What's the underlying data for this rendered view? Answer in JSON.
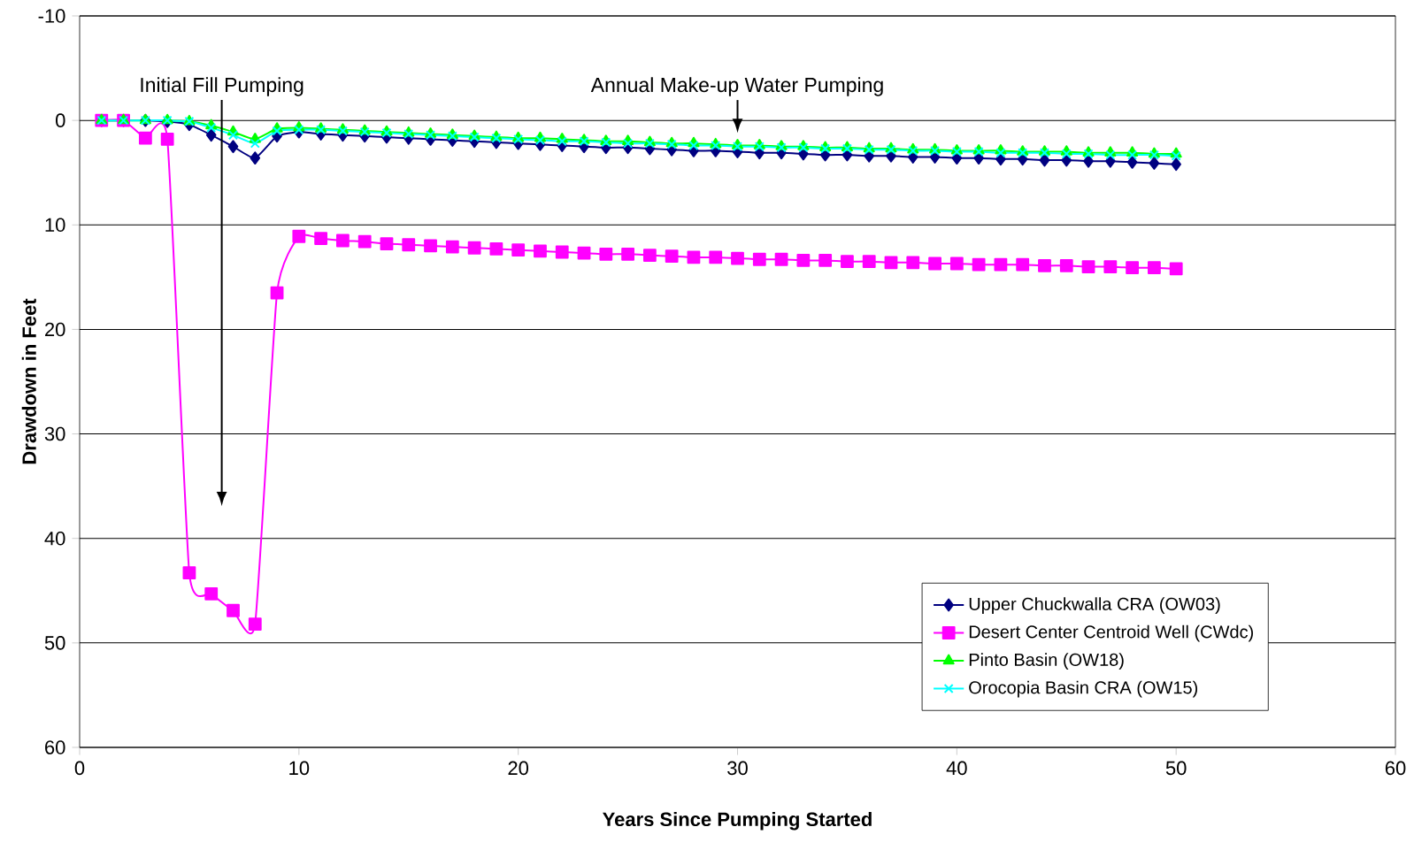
{
  "chart_data": {
    "type": "line",
    "xlabel": "Years Since Pumping Started",
    "ylabel": "Drawdown in Feet",
    "x": [
      1,
      2,
      3,
      4,
      5,
      6,
      7,
      8,
      9,
      10,
      11,
      12,
      13,
      14,
      15,
      16,
      17,
      18,
      19,
      20,
      21,
      22,
      23,
      24,
      25,
      26,
      27,
      28,
      29,
      30,
      31,
      32,
      33,
      34,
      35,
      36,
      37,
      38,
      39,
      40,
      41,
      42,
      43,
      44,
      45,
      46,
      47,
      48,
      49,
      50
    ],
    "series": [
      {
        "name": "Upper Chuckwalla CRA (OW03)",
        "color": "#000080",
        "marker": "diamond",
        "values": [
          0,
          0,
          0,
          0.1,
          0.4,
          1.4,
          2.5,
          3.6,
          1.5,
          1.1,
          1.3,
          1.4,
          1.5,
          1.6,
          1.7,
          1.8,
          1.9,
          2.0,
          2.1,
          2.2,
          2.3,
          2.4,
          2.5,
          2.6,
          2.6,
          2.7,
          2.8,
          2.9,
          2.9,
          3.0,
          3.1,
          3.1,
          3.2,
          3.3,
          3.3,
          3.4,
          3.4,
          3.5,
          3.5,
          3.6,
          3.6,
          3.7,
          3.7,
          3.8,
          3.8,
          3.9,
          3.9,
          4.0,
          4.1,
          4.2
        ]
      },
      {
        "name": "Desert Center Centroid Well (CWdc)",
        "color": "#ff00ff",
        "marker": "square",
        "values": [
          0,
          0,
          1.7,
          1.8,
          43.3,
          45.3,
          46.9,
          48.2,
          16.5,
          11.1,
          11.3,
          11.5,
          11.6,
          11.8,
          11.9,
          12.0,
          12.1,
          12.2,
          12.3,
          12.4,
          12.5,
          12.6,
          12.7,
          12.8,
          12.8,
          12.9,
          13.0,
          13.1,
          13.1,
          13.2,
          13.3,
          13.3,
          13.4,
          13.4,
          13.5,
          13.5,
          13.6,
          13.6,
          13.7,
          13.7,
          13.8,
          13.8,
          13.8,
          13.9,
          13.9,
          14.0,
          14.0,
          14.1,
          14.1,
          14.2
        ]
      },
      {
        "name": "Pinto Basin (OW18)",
        "color": "#00ff00",
        "marker": "triangle",
        "values": [
          0,
          0,
          0,
          0,
          0.1,
          0.5,
          1.1,
          1.8,
          0.8,
          0.7,
          0.8,
          0.9,
          1.0,
          1.1,
          1.2,
          1.3,
          1.4,
          1.5,
          1.6,
          1.7,
          1.7,
          1.8,
          1.9,
          2.0,
          2.0,
          2.1,
          2.2,
          2.2,
          2.3,
          2.4,
          2.4,
          2.5,
          2.5,
          2.6,
          2.6,
          2.7,
          2.7,
          2.8,
          2.8,
          2.9,
          2.9,
          2.9,
          3.0,
          3.0,
          3.0,
          3.1,
          3.1,
          3.1,
          3.2,
          3.2
        ]
      },
      {
        "name": "Orocopia Basin CRA (OW15)",
        "color": "#00ffff",
        "marker": "cross",
        "values": [
          0,
          0,
          0,
          0,
          0.1,
          0.7,
          1.4,
          2.2,
          1.0,
          0.9,
          0.9,
          1.0,
          1.1,
          1.2,
          1.3,
          1.4,
          1.5,
          1.6,
          1.7,
          1.8,
          1.9,
          2.0,
          2.0,
          2.1,
          2.2,
          2.2,
          2.3,
          2.4,
          2.4,
          2.5,
          2.5,
          2.6,
          2.6,
          2.7,
          2.7,
          2.8,
          2.8,
          2.9,
          2.9,
          3.0,
          3.0,
          3.1,
          3.1,
          3.1,
          3.2,
          3.2,
          3.3,
          3.3,
          3.3,
          3.4
        ]
      }
    ],
    "xlim": [
      0,
      60
    ],
    "xticks": [
      0,
      10,
      20,
      30,
      40,
      50,
      60
    ],
    "ylim": [
      60,
      -10
    ],
    "yticks": [
      -10,
      0,
      10,
      20,
      30,
      40,
      50,
      60
    ],
    "grid": "y",
    "legend": "bottom right",
    "annotations": [
      "Initial Fill Pumping",
      "Annual Make-up Water Pumping"
    ]
  }
}
